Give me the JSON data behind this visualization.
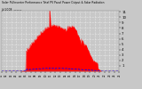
{
  "title_line1": "Solar PV/Inverter Performance Total PV Panel Power Output & Solar Radiation",
  "title_line2": "Jul 2008  ———",
  "bg_color": "#c8c8c8",
  "plot_bg_color": "#c8c8c8",
  "grid_color": "#ffffff",
  "area_color": "#ff0000",
  "line_color": "#0000ff",
  "ylim": [
    0,
    11.2
  ],
  "yticks": [
    1,
    2,
    3,
    4,
    5,
    6,
    7,
    8,
    9,
    10,
    11
  ],
  "ytick_labels": [
    "1",
    "2",
    "3",
    "4",
    "5",
    "6",
    "7",
    "8",
    "9",
    "10",
    "11"
  ],
  "num_points": 288
}
